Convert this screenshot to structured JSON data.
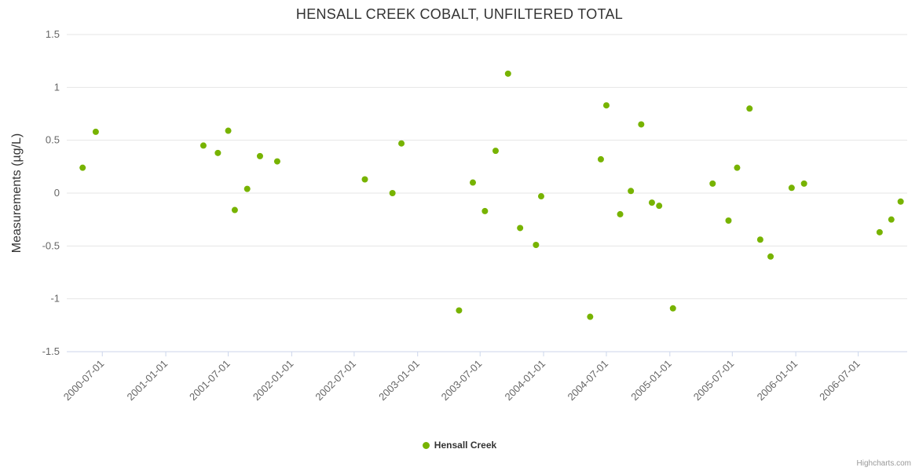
{
  "title": "HENSALL CREEK COBALT, UNFILTERED TOTAL",
  "credits": "Highcharts.com",
  "legend": {
    "label": "Hensall Creek",
    "marker_color": "#77b300"
  },
  "chart_data": {
    "type": "scatter",
    "title": "HENSALL CREEK COBALT, UNFILTERED TOTAL",
    "xlabel": "",
    "ylabel": "Measurements (µg/L)",
    "ylim": [
      -1.5,
      1.5
    ],
    "y_ticks": [
      1.5,
      1,
      0.5,
      0,
      -0.5,
      -1,
      -1.5
    ],
    "x_ticks": [
      "2000-07-01",
      "2001-01-01",
      "2001-07-01",
      "2002-01-01",
      "2002-07-01",
      "2003-01-01",
      "2003-07-01",
      "2004-01-01",
      "2004-07-01",
      "2005-01-01",
      "2005-07-01",
      "2006-01-01",
      "2006-07-01"
    ],
    "x_range": [
      "2000-03-20",
      "2006-11-20"
    ],
    "grid": true,
    "grid_color": "#e6e6e6",
    "axis_line_color": "#ccd6eb",
    "legend_position": "bottom",
    "series": [
      {
        "name": "Hensall Creek",
        "color": "#77b300",
        "points": [
          [
            "2000-05-05",
            0.24
          ],
          [
            "2000-06-12",
            0.58
          ],
          [
            "2001-04-20",
            0.45
          ],
          [
            "2001-06-01",
            0.38
          ],
          [
            "2001-07-01",
            0.59
          ],
          [
            "2001-07-20",
            -0.16
          ],
          [
            "2001-08-25",
            0.04
          ],
          [
            "2001-10-01",
            0.35
          ],
          [
            "2001-11-20",
            0.3
          ],
          [
            "2002-08-01",
            0.13
          ],
          [
            "2002-10-20",
            0.0
          ],
          [
            "2002-11-15",
            0.47
          ],
          [
            "2003-05-01",
            -1.11
          ],
          [
            "2003-06-10",
            0.1
          ],
          [
            "2003-07-15",
            -0.17
          ],
          [
            "2003-08-15",
            0.4
          ],
          [
            "2003-09-20",
            1.13
          ],
          [
            "2003-10-25",
            -0.33
          ],
          [
            "2003-12-10",
            -0.49
          ],
          [
            "2003-12-25",
            -0.03
          ],
          [
            "2004-05-15",
            -1.17
          ],
          [
            "2004-06-15",
            0.32
          ],
          [
            "2004-07-01",
            0.83
          ],
          [
            "2004-08-10",
            -0.2
          ],
          [
            "2004-09-10",
            0.02
          ],
          [
            "2004-10-10",
            0.65
          ],
          [
            "2004-11-10",
            -0.09
          ],
          [
            "2004-12-01",
            -0.12
          ],
          [
            "2005-01-10",
            -1.09
          ],
          [
            "2005-05-05",
            0.09
          ],
          [
            "2005-06-20",
            -0.26
          ],
          [
            "2005-07-15",
            0.24
          ],
          [
            "2005-08-20",
            0.8
          ],
          [
            "2005-09-20",
            -0.44
          ],
          [
            "2005-10-20",
            -0.6
          ],
          [
            "2005-12-20",
            0.05
          ],
          [
            "2006-01-25",
            0.09
          ],
          [
            "2006-09-01",
            -0.37
          ],
          [
            "2006-10-05",
            -0.25
          ],
          [
            "2006-11-01",
            -0.08
          ]
        ]
      }
    ]
  }
}
